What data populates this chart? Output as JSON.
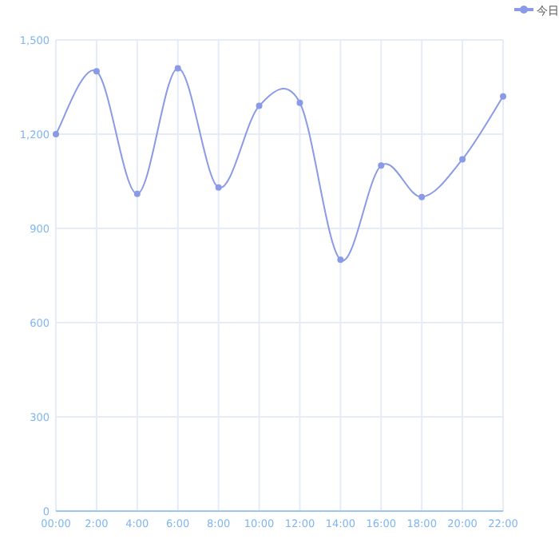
{
  "chart_data": {
    "type": "line",
    "categories": [
      "00:00",
      "2:00",
      "4:00",
      "6:00",
      "8:00",
      "10:00",
      "12:00",
      "14:00",
      "16:00",
      "18:00",
      "20:00",
      "22:00"
    ],
    "series": [
      {
        "name": "今日",
        "color": "#8a9ae6",
        "values": [
          1200,
          1400,
          1010,
          1410,
          1030,
          1290,
          1300,
          800,
          1100,
          1000,
          1120,
          1320
        ]
      }
    ],
    "ylim": [
      0,
      1500
    ],
    "yticks": [
      0,
      300,
      600,
      900,
      {
        "value": 1200,
        "label": "1,200"
      },
      {
        "value": 1500,
        "label": "1,500"
      }
    ],
    "grid": true,
    "legend": "top right",
    "marker": "circle",
    "line_style": "solid"
  }
}
